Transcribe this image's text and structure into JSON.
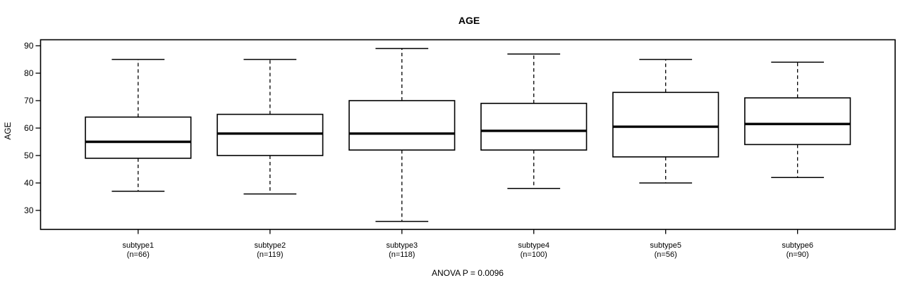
{
  "chart_data": {
    "type": "boxplot",
    "title": "AGE",
    "ylabel": "AGE",
    "xlabel": "",
    "annotation": "ANOVA P = 0.0096",
    "y_ticks": [
      30,
      40,
      50,
      60,
      70,
      80,
      90
    ],
    "ylim": [
      23,
      92
    ],
    "grid": false,
    "legend": "none",
    "box_color": "#000000",
    "box_fill": "#ffffff",
    "groups": [
      {
        "label": "subtype1",
        "n_label": "(n=66)",
        "n": 66,
        "whisker_low": 37,
        "q1": 49,
        "median": 55,
        "q3": 64,
        "whisker_high": 85
      },
      {
        "label": "subtype2",
        "n_label": "(n=119)",
        "n": 119,
        "whisker_low": 36,
        "q1": 50,
        "median": 58,
        "q3": 65,
        "whisker_high": 85
      },
      {
        "label": "subtype3",
        "n_label": "(n=118)",
        "n": 118,
        "whisker_low": 26,
        "q1": 52,
        "median": 58,
        "q3": 70,
        "whisker_high": 89
      },
      {
        "label": "subtype4",
        "n_label": "(n=100)",
        "n": 100,
        "whisker_low": 38,
        "q1": 52,
        "median": 59,
        "q3": 69,
        "whisker_high": 87
      },
      {
        "label": "subtype5",
        "n_label": "(n=56)",
        "n": 56,
        "whisker_low": 40,
        "q1": 49.5,
        "median": 60.5,
        "q3": 73,
        "whisker_high": 85
      },
      {
        "label": "subtype6",
        "n_label": "(n=90)",
        "n": 90,
        "whisker_low": 42,
        "q1": 54,
        "median": 61.5,
        "q3": 71,
        "whisker_high": 84
      }
    ]
  }
}
